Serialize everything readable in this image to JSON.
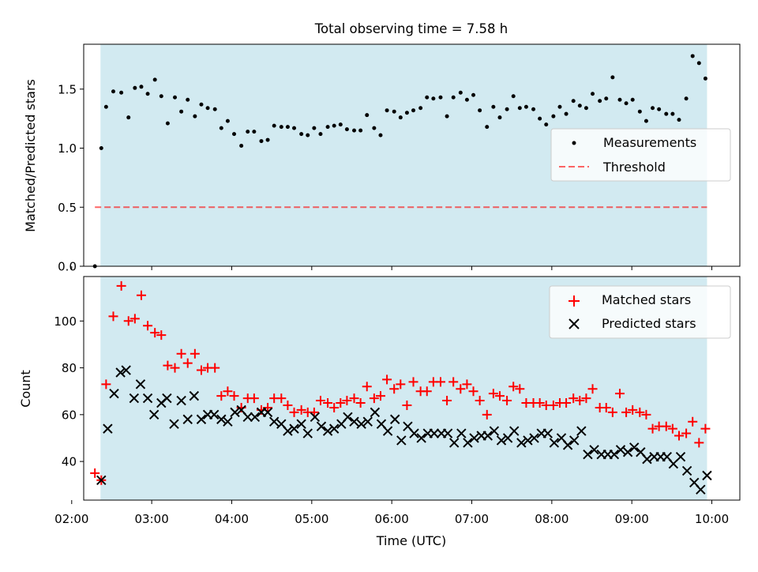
{
  "title": "Total observing time = 7.58 h",
  "colors": {
    "shade": "#add8e6",
    "measurement": "#000000",
    "threshold": "#ff0000",
    "matched": "#ff0000",
    "predicted": "#000000"
  },
  "chart_data": [
    {
      "type": "scatter",
      "title": "Total observing time = 7.58 h",
      "ylabel": "Matched/Predicted stars",
      "xlabel": "",
      "xlim": [
        2.15,
        10.35
      ],
      "ylim": [
        0,
        1.88
      ],
      "yticks": [
        0.0,
        0.5,
        1.0,
        1.5
      ],
      "ytick_labels": [
        "0.0",
        "0.5",
        "1.0",
        "1.5"
      ],
      "shaded_interval": [
        2.36,
        9.94
      ],
      "legend_position": "center-right",
      "legend": [
        "Measurements",
        "Threshold"
      ],
      "threshold": {
        "name": "Threshold",
        "y": 0.5,
        "x": [
          2.29,
          9.94
        ]
      },
      "series": [
        {
          "name": "Measurements",
          "marker": "dot",
          "x": [
            2.29,
            2.37,
            2.43,
            2.52,
            2.62,
            2.71,
            2.79,
            2.87,
            2.95,
            3.04,
            3.12,
            3.2,
            3.29,
            3.37,
            3.45,
            3.54,
            3.62,
            3.7,
            3.79,
            3.87,
            3.95,
            4.03,
            4.12,
            4.2,
            4.28,
            4.37,
            4.45,
            4.53,
            4.62,
            4.7,
            4.78,
            4.87,
            4.95,
            5.03,
            5.11,
            5.2,
            5.28,
            5.36,
            5.44,
            5.53,
            5.61,
            5.69,
            5.78,
            5.86,
            5.94,
            6.03,
            6.11,
            6.19,
            6.27,
            6.36,
            6.44,
            6.52,
            6.61,
            6.69,
            6.77,
            6.86,
            6.94,
            7.02,
            7.1,
            7.19,
            7.27,
            7.35,
            7.44,
            7.52,
            7.6,
            7.68,
            7.77,
            7.85,
            7.93,
            8.02,
            8.1,
            8.18,
            8.27,
            8.35,
            8.43,
            8.51,
            8.6,
            8.68,
            8.76,
            8.85,
            8.93,
            9.01,
            9.1,
            9.18,
            9.26,
            9.34,
            9.43,
            9.51,
            9.59,
            9.68,
            9.76,
            9.84,
            9.92
          ],
          "y": [
            0.0,
            1.0,
            1.35,
            1.48,
            1.47,
            1.26,
            1.51,
            1.52,
            1.46,
            1.58,
            1.44,
            1.21,
            1.43,
            1.31,
            1.41,
            1.27,
            1.37,
            1.34,
            1.33,
            1.17,
            1.23,
            1.12,
            1.02,
            1.14,
            1.14,
            1.06,
            1.07,
            1.19,
            1.18,
            1.18,
            1.17,
            1.12,
            1.11,
            1.17,
            1.12,
            1.18,
            1.19,
            1.2,
            1.16,
            1.15,
            1.15,
            1.28,
            1.17,
            1.11,
            1.32,
            1.31,
            1.26,
            1.3,
            1.32,
            1.34,
            1.43,
            1.42,
            1.43,
            1.27,
            1.43,
            1.47,
            1.41,
            1.45,
            1.32,
            1.18,
            1.35,
            1.26,
            1.33,
            1.44,
            1.34,
            1.35,
            1.33,
            1.25,
            1.2,
            1.27,
            1.35,
            1.29,
            1.4,
            1.36,
            1.34,
            1.46,
            1.4,
            1.42,
            1.6,
            1.41,
            1.38,
            1.41,
            1.31,
            1.23,
            1.34,
            1.33,
            1.29,
            1.29,
            1.24,
            1.42,
            1.78,
            1.72,
            1.59
          ]
        }
      ]
    },
    {
      "type": "scatter",
      "xlabel": "Time (UTC)",
      "ylabel": "Count",
      "xlim": [
        2.15,
        10.35
      ],
      "ylim": [
        23.5,
        119
      ],
      "xticks": [
        2,
        3,
        4,
        5,
        6,
        7,
        8,
        9,
        10
      ],
      "xtick_labels": [
        "02:00",
        "03:00",
        "04:00",
        "05:00",
        "06:00",
        "07:00",
        "08:00",
        "09:00",
        "10:00"
      ],
      "yticks": [
        40,
        60,
        80,
        100
      ],
      "ytick_labels": [
        "40",
        "60",
        "80",
        "100"
      ],
      "shaded_interval": [
        2.36,
        9.94
      ],
      "legend_position": "top-right",
      "legend": [
        "Matched stars",
        "Predicted stars"
      ],
      "series": [
        {
          "name": "Matched stars",
          "marker": "plus",
          "x": [
            2.29,
            2.37,
            2.43,
            2.52,
            2.62,
            2.71,
            2.79,
            2.87,
            2.95,
            3.04,
            3.12,
            3.2,
            3.29,
            3.37,
            3.45,
            3.54,
            3.62,
            3.7,
            3.79,
            3.87,
            3.95,
            4.03,
            4.12,
            4.2,
            4.28,
            4.37,
            4.45,
            4.53,
            4.62,
            4.7,
            4.78,
            4.87,
            4.95,
            5.03,
            5.11,
            5.2,
            5.28,
            5.36,
            5.44,
            5.53,
            5.61,
            5.69,
            5.78,
            5.86,
            5.94,
            6.03,
            6.11,
            6.19,
            6.27,
            6.36,
            6.44,
            6.52,
            6.61,
            6.69,
            6.77,
            6.86,
            6.94,
            7.02,
            7.1,
            7.19,
            7.27,
            7.35,
            7.44,
            7.52,
            7.6,
            7.68,
            7.77,
            7.85,
            7.93,
            8.02,
            8.1,
            8.18,
            8.27,
            8.35,
            8.43,
            8.51,
            8.6,
            8.68,
            8.76,
            8.85,
            8.93,
            9.01,
            9.1,
            9.18,
            9.26,
            9.34,
            9.43,
            9.51,
            9.59,
            9.68,
            9.76,
            9.84,
            9.92
          ],
          "y": [
            35,
            32,
            73,
            102,
            115,
            100,
            101,
            111,
            98,
            95,
            94,
            81,
            80,
            86,
            82,
            86,
            79,
            80,
            80,
            68,
            70,
            68,
            63,
            67,
            67,
            62,
            63,
            67,
            67,
            64,
            61,
            62,
            61,
            61,
            66,
            65,
            63,
            65,
            66,
            67,
            65,
            72,
            67,
            68,
            75,
            71,
            73,
            64,
            74,
            70,
            70,
            74,
            74,
            66,
            74,
            71,
            73,
            70,
            66,
            60,
            69,
            68,
            66,
            72,
            71,
            65,
            65,
            65,
            64,
            64,
            65,
            65,
            67,
            66,
            67,
            71,
            63,
            63,
            61,
            69,
            61,
            62,
            61,
            60,
            54,
            55,
            55,
            54,
            51,
            52,
            57,
            48,
            54
          ]
        },
        {
          "name": "Predicted stars",
          "marker": "x",
          "x": [
            2.37,
            2.45,
            2.53,
            2.61,
            2.68,
            2.78,
            2.86,
            2.95,
            3.03,
            3.12,
            3.19,
            3.28,
            3.37,
            3.45,
            3.53,
            3.62,
            3.7,
            3.78,
            3.87,
            3.95,
            4.04,
            4.12,
            4.2,
            4.29,
            4.37,
            4.45,
            4.53,
            4.62,
            4.7,
            4.78,
            4.87,
            4.95,
            5.04,
            5.12,
            5.2,
            5.28,
            5.37,
            5.45,
            5.53,
            5.62,
            5.7,
            5.79,
            5.87,
            5.95,
            6.04,
            6.12,
            6.2,
            6.28,
            6.37,
            6.45,
            6.53,
            6.62,
            6.7,
            6.78,
            6.87,
            6.95,
            7.03,
            7.12,
            7.2,
            7.28,
            7.37,
            7.45,
            7.53,
            7.62,
            7.7,
            7.78,
            7.87,
            7.95,
            8.03,
            8.12,
            8.2,
            8.28,
            8.37,
            8.45,
            8.53,
            8.62,
            8.7,
            8.78,
            8.86,
            8.95,
            9.03,
            9.11,
            9.19,
            9.28,
            9.36,
            9.44,
            9.52,
            9.61,
            9.69,
            9.78,
            9.86,
            9.94
          ],
          "y": [
            32,
            54,
            69,
            78,
            79,
            67,
            73,
            67,
            60,
            65,
            67,
            56,
            66,
            58,
            68,
            58,
            60,
            60,
            58,
            57,
            61,
            62,
            59,
            59,
            61,
            61,
            57,
            56,
            53,
            54,
            56,
            52,
            59,
            55,
            53,
            54,
            56,
            59,
            57,
            56,
            57,
            61,
            56,
            53,
            58,
            49,
            55,
            52,
            50,
            52,
            52,
            52,
            52,
            48,
            52,
            48,
            50,
            51,
            51,
            53,
            49,
            50,
            53,
            48,
            49,
            50,
            52,
            52,
            48,
            50,
            47,
            49,
            53,
            43,
            45,
            43,
            43,
            43,
            45,
            44,
            46,
            44,
            41,
            42,
            42,
            42,
            39,
            42,
            36,
            31,
            28,
            34
          ]
        }
      ]
    }
  ]
}
